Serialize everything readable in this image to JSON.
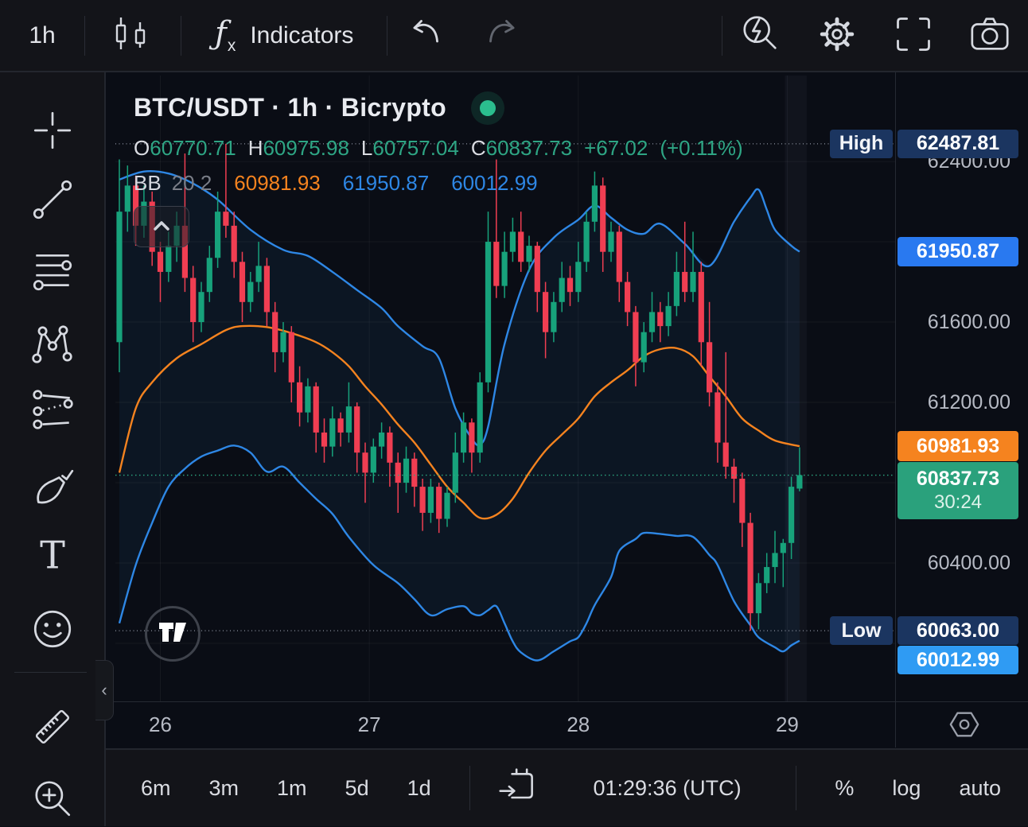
{
  "toolbar_top": {
    "interval": "1h",
    "indicators": "Indicators"
  },
  "legend": {
    "title": "BTC/USDT · 1h · Bicrypto",
    "ohlc": {
      "o_label": "O",
      "o_value": "60770.71",
      "h_label": "H",
      "h_value": "60975.98",
      "l_label": "L",
      "l_value": "60757.04",
      "c_label": "C",
      "c_value": "60837.73",
      "change": "+67.02",
      "change_pct": "(+0.11%)"
    },
    "bb": {
      "name": "BB",
      "params": "20 2",
      "basis": "60981.93",
      "upper": "61950.87",
      "lower": "60012.99"
    }
  },
  "price_axis": {
    "high_label": "High",
    "high_value": "62487.81",
    "upper_value": "61950.87",
    "basis_value": "60981.93",
    "last_value": "60837.73",
    "countdown": "30:24",
    "low_label": "Low",
    "low_value": "60063.00",
    "lower_value": "60012.99"
  },
  "time_axis": {
    "labels": [
      "26",
      "27",
      "28",
      "29"
    ]
  },
  "toolbar_bottom": {
    "ranges": [
      "6m",
      "3m",
      "1m",
      "5d",
      "1d"
    ],
    "clock": "01:29:36 (UTC)",
    "percent_label": "%",
    "log_label": "log",
    "auto_label": "auto"
  },
  "icons": {
    "chart-style": "candlestick",
    "indicators": "fx",
    "undo": "curved-arrow-left",
    "redo": "curved-arrow-right",
    "quick-search": "magnifier-lightning",
    "settings": "gear",
    "fullscreen": "corner-brackets",
    "snapshot": "camera",
    "crosshair": "cross",
    "trend-line": "diagonal-line-dots",
    "fib-retracement": "horizontal-lines-dots",
    "xabcd-pattern": "zigzag-points",
    "forecast": "projection-lines",
    "brush": "paintbrush",
    "text-tool": "serif-T",
    "emoji": "smiley-face",
    "measure": "ruler",
    "zoom-in": "magnifier-plus",
    "go-to-date": "calendar-arrow",
    "timezone-settings": "hexagon-gear",
    "market-status": "green-dot",
    "tradingview-logo": "tv-monogram",
    "legend-collapse": "chevron-up",
    "sidebar-collapse": "chevron-left"
  },
  "colors": {
    "up": "#17A27B",
    "down": "#F03E52",
    "band_blue": "#2E87E5",
    "basis_orange": "#F5831F",
    "teal": "#2CA680",
    "level_gray": "#AEB4C2",
    "badge_blue": "#2979F0",
    "badge_light_blue": "#2F9BF3",
    "badge_orange": "#F5831F",
    "badge_green": "#2AA17C",
    "badge_navy": "#1B3560",
    "bg_chart": "#0A0D15",
    "bg_panel": "#131419"
  },
  "chart_data": {
    "type": "candlestick",
    "title": "BTC/USDT · 1h · Bicrypto",
    "interval": "1h",
    "provider": "Bicrypto",
    "y_range": [
      59711,
      62828
    ],
    "grid_step": 400,
    "grid_prices": [
      62400,
      62000,
      61600,
      61200,
      60800,
      60400,
      60000
    ],
    "visible_price_labels": [
      {
        "price": 62400,
        "text": "62400.00"
      },
      {
        "price": 61600,
        "text": "61600.00"
      },
      {
        "price": 61200,
        "text": "61200.00"
      },
      {
        "price": 60400,
        "text": "60400.00"
      }
    ],
    "day_ticks": [
      {
        "label": "26",
        "i": 5
      },
      {
        "label": "27",
        "i": 30.5
      },
      {
        "label": "28",
        "i": 56
      },
      {
        "label": "29",
        "i": 81.5
      }
    ],
    "bar_spacing": 10.3,
    "levels": {
      "high": 62487.81,
      "last": 60837.73,
      "low": 60063.0
    },
    "candles": [
      [
        61500,
        62410,
        61350,
        62150
      ],
      [
        62150,
        62380,
        62050,
        62280
      ],
      [
        62280,
        62330,
        61980,
        62080
      ],
      [
        62080,
        62280,
        62020,
        62200
      ],
      [
        62200,
        62250,
        61880,
        61950
      ],
      [
        61950,
        62000,
        61700,
        61850
      ],
      [
        61850,
        62050,
        61800,
        61980
      ],
      [
        61980,
        62150,
        61900,
        62080
      ],
      [
        62080,
        62440,
        61750,
        61820
      ],
      [
        61820,
        61880,
        61500,
        61600
      ],
      [
        61600,
        61800,
        61550,
        61750
      ],
      [
        61750,
        61980,
        61700,
        61920
      ],
      [
        61920,
        62250,
        61870,
        62150
      ],
      [
        62150,
        62487.81,
        62020,
        62080
      ],
      [
        62080,
        62150,
        61820,
        61900
      ],
      [
        61900,
        61950,
        61600,
        61700
      ],
      [
        61700,
        61850,
        61650,
        61800
      ],
      [
        61800,
        62000,
        61750,
        61880
      ],
      [
        61880,
        61920,
        61580,
        61650
      ],
      [
        61650,
        61700,
        61350,
        61450
      ],
      [
        61450,
        61600,
        61400,
        61550
      ],
      [
        61550,
        61580,
        61200,
        61300
      ],
      [
        61300,
        61380,
        61080,
        61150
      ],
      [
        61150,
        61320,
        61100,
        61280
      ],
      [
        61280,
        61300,
        60950,
        61050
      ],
      [
        61050,
        61120,
        60900,
        60980
      ],
      [
        60980,
        61180,
        60930,
        61120
      ],
      [
        61120,
        61150,
        60980,
        61050
      ],
      [
        61050,
        61300,
        61000,
        61180
      ],
      [
        61180,
        61200,
        60850,
        60950
      ],
      [
        60950,
        61000,
        60700,
        60850
      ],
      [
        60850,
        61020,
        60800,
        60980
      ],
      [
        60980,
        61100,
        60920,
        61050
      ],
      [
        61050,
        61080,
        60780,
        60900
      ],
      [
        60900,
        60950,
        60650,
        60800
      ],
      [
        60800,
        60980,
        60750,
        60920
      ],
      [
        60920,
        60950,
        60680,
        60780
      ],
      [
        60780,
        60820,
        60560,
        60650
      ],
      [
        60650,
        60820,
        60600,
        60780
      ],
      [
        60780,
        60800,
        60550,
        60620
      ],
      [
        60620,
        60780,
        60580,
        60750
      ],
      [
        60750,
        61050,
        60700,
        60950
      ],
      [
        60950,
        61150,
        60900,
        61100
      ],
      [
        61100,
        61120,
        60850,
        60950
      ],
      [
        60950,
        61350,
        60900,
        61300
      ],
      [
        61300,
        62150,
        61250,
        62000
      ],
      [
        62000,
        62410,
        61720,
        61780
      ],
      [
        61780,
        62050,
        61720,
        61950
      ],
      [
        61950,
        62120,
        61900,
        62050
      ],
      [
        62050,
        62150,
        61850,
        61900
      ],
      [
        61900,
        62030,
        61850,
        61980
      ],
      [
        61980,
        62000,
        61650,
        61750
      ],
      [
        61750,
        61800,
        61420,
        61550
      ],
      [
        61550,
        61750,
        61500,
        61700
      ],
      [
        61700,
        61900,
        61650,
        61820
      ],
      [
        61820,
        61880,
        61680,
        61750
      ],
      [
        61750,
        62000,
        61700,
        61900
      ],
      [
        61900,
        62150,
        61850,
        62100
      ],
      [
        62100,
        62350,
        62050,
        62280
      ],
      [
        62280,
        62320,
        61850,
        61950
      ],
      [
        61950,
        62100,
        61900,
        62050
      ],
      [
        62050,
        62080,
        61700,
        61800
      ],
      [
        61800,
        61850,
        61580,
        61650
      ],
      [
        61650,
        61680,
        61280,
        61400
      ],
      [
        61400,
        61600,
        61350,
        61550
      ],
      [
        61550,
        61750,
        61500,
        61650
      ],
      [
        61650,
        61700,
        61500,
        61580
      ],
      [
        61580,
        61750,
        61530,
        61680
      ],
      [
        61680,
        61950,
        61630,
        61850
      ],
      [
        61850,
        62100,
        61700,
        61750
      ],
      [
        61750,
        62050,
        61700,
        61850
      ],
      [
        61850,
        61900,
        61380,
        61500
      ],
      [
        61500,
        61700,
        61180,
        61250
      ],
      [
        61250,
        61300,
        60900,
        61000
      ],
      [
        61000,
        61450,
        60820,
        60880
      ],
      [
        60880,
        60920,
        60700,
        60820
      ],
      [
        60820,
        60850,
        60480,
        60600
      ],
      [
        60600,
        60650,
        60063,
        60150
      ],
      [
        60150,
        60350,
        60070,
        60300
      ],
      [
        60300,
        60450,
        60250,
        60380
      ],
      [
        60380,
        60560,
        60300,
        60450
      ],
      [
        60450,
        60520,
        60280,
        60500
      ],
      [
        60500,
        60830,
        60420,
        60780
      ],
      [
        60770.71,
        60975.98,
        60757.04,
        60837.73
      ]
    ],
    "bollinger": {
      "period": 20,
      "stddev": 2,
      "upper": [
        [
          0,
          62310
        ],
        [
          3,
          62350
        ],
        [
          6,
          62340
        ],
        [
          9,
          62290
        ],
        [
          12,
          62210
        ],
        [
          16,
          62060
        ],
        [
          20,
          61960
        ],
        [
          23,
          61930
        ],
        [
          26,
          61850
        ],
        [
          29,
          61760
        ],
        [
          32,
          61670
        ],
        [
          34,
          61580
        ],
        [
          37,
          61480
        ],
        [
          39,
          61420
        ],
        [
          41,
          61170
        ],
        [
          43,
          61020
        ],
        [
          44,
          60990
        ],
        [
          45,
          61080
        ],
        [
          47,
          61490
        ],
        [
          50,
          61860
        ],
        [
          53,
          62020
        ],
        [
          56,
          62110
        ],
        [
          58,
          62180
        ],
        [
          60,
          62120
        ],
        [
          62,
          62060
        ],
        [
          64,
          62040
        ],
        [
          66,
          62090
        ],
        [
          69,
          61990
        ],
        [
          72,
          61880
        ],
        [
          75,
          62100
        ],
        [
          77,
          62220
        ],
        [
          78,
          62260
        ],
        [
          79,
          62160
        ],
        [
          80,
          62060
        ],
        [
          82,
          61980
        ],
        [
          83,
          61950.87
        ]
      ],
      "basis": [
        [
          0,
          60850
        ],
        [
          2,
          61170
        ],
        [
          4,
          61300
        ],
        [
          7,
          61420
        ],
        [
          10,
          61490
        ],
        [
          13,
          61560
        ],
        [
          15,
          61580
        ],
        [
          18,
          61575
        ],
        [
          21,
          61545
        ],
        [
          24,
          61500
        ],
        [
          26,
          61450
        ],
        [
          28,
          61380
        ],
        [
          30,
          61280
        ],
        [
          32,
          61190
        ],
        [
          34,
          61090
        ],
        [
          36,
          61000
        ],
        [
          38,
          60890
        ],
        [
          40,
          60780
        ],
        [
          42,
          60700
        ],
        [
          44,
          60625
        ],
        [
          46,
          60640
        ],
        [
          48,
          60720
        ],
        [
          50,
          60850
        ],
        [
          52,
          60960
        ],
        [
          54,
          61040
        ],
        [
          56,
          61120
        ],
        [
          58,
          61230
        ],
        [
          60,
          61300
        ],
        [
          62,
          61360
        ],
        [
          64,
          61430
        ],
        [
          66,
          61465
        ],
        [
          68,
          61470
        ],
        [
          70,
          61430
        ],
        [
          72,
          61330
        ],
        [
          74,
          61230
        ],
        [
          76,
          61120
        ],
        [
          78,
          61060
        ],
        [
          80,
          61010
        ],
        [
          83,
          60981.93
        ]
      ],
      "lower": [
        [
          0,
          60100
        ],
        [
          2,
          60390
        ],
        [
          4,
          60600
        ],
        [
          6,
          60780
        ],
        [
          8,
          60870
        ],
        [
          10,
          60930
        ],
        [
          12,
          60960
        ],
        [
          14,
          60985
        ],
        [
          16,
          60950
        ],
        [
          18,
          60855
        ],
        [
          20,
          60880
        ],
        [
          22,
          60800
        ],
        [
          24,
          60720
        ],
        [
          26,
          60645
        ],
        [
          28,
          60530
        ],
        [
          31,
          60390
        ],
        [
          34,
          60300
        ],
        [
          36,
          60220
        ],
        [
          38,
          60140
        ],
        [
          40,
          60170
        ],
        [
          42,
          60185
        ],
        [
          43,
          60150
        ],
        [
          44,
          60140
        ],
        [
          45,
          60165
        ],
        [
          46,
          60185
        ],
        [
          47,
          60100
        ],
        [
          48,
          60010
        ],
        [
          49,
          59955
        ],
        [
          51,
          59915
        ],
        [
          53,
          59960
        ],
        [
          55,
          60010
        ],
        [
          56,
          60030
        ],
        [
          57,
          60100
        ],
        [
          58,
          60190
        ],
        [
          60,
          60330
        ],
        [
          61,
          60460
        ],
        [
          63,
          60520
        ],
        [
          64,
          60550
        ],
        [
          66,
          60545
        ],
        [
          68,
          60535
        ],
        [
          70,
          60530
        ],
        [
          72,
          60440
        ],
        [
          73,
          60390
        ],
        [
          75,
          60210
        ],
        [
          77,
          60090
        ],
        [
          78,
          60030
        ],
        [
          80,
          59980
        ],
        [
          81,
          59960
        ],
        [
          82,
          59990
        ],
        [
          83,
          60012.99
        ]
      ]
    }
  }
}
